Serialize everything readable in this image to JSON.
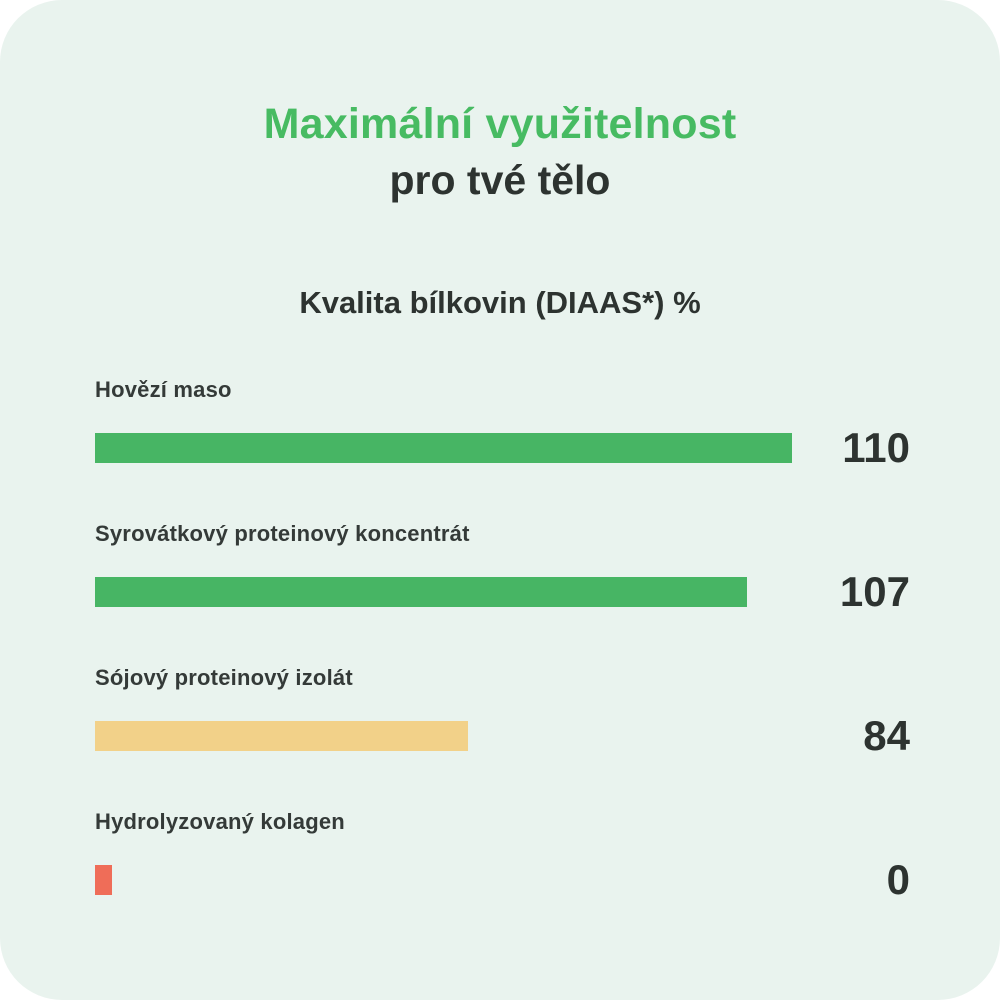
{
  "header": {
    "title_line1": "Maximální využitelnost",
    "title_line2": "pro tvé tělo"
  },
  "chart_data": {
    "type": "bar",
    "orientation": "horizontal",
    "title": "Kvalita bílkovin (DIAAS*) %",
    "categories": [
      "Hovězí maso",
      "Syrovátkový proteinový koncentrát",
      "Sójový proteinový izolát",
      "Hydrolyzovaný kolagen"
    ],
    "values": [
      110,
      107,
      84,
      0
    ],
    "bar_width_pct": [
      100,
      93.5,
      53.5,
      2.4
    ],
    "bar_colors": [
      "#47b564",
      "#47b564",
      "#f2d189",
      "#ef6d58"
    ],
    "xlim": [
      0,
      110
    ],
    "grid": false,
    "legend": false
  },
  "colors": {
    "card_background": "#e9f3ee",
    "page_background": "#ffffff",
    "accent_green": "#47bb62",
    "bar_green": "#47b564",
    "bar_yellow": "#f2d189",
    "bar_red": "#ef6d58",
    "text_dark": "#2d3330"
  }
}
